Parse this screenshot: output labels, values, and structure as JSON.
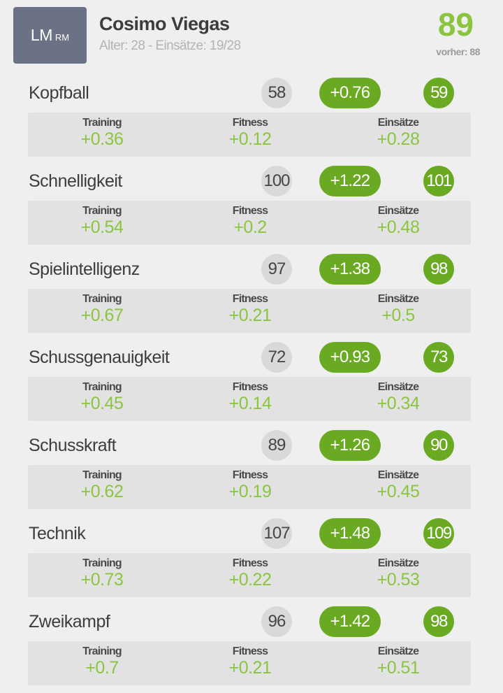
{
  "player": {
    "position_main": "LM",
    "position_secondary": "RM",
    "name": "Cosimo Viegas",
    "meta": "Alter: 28 - Einsätze: 19/28",
    "overall": "89",
    "previous": "vorher: 88"
  },
  "labels": {
    "training": "Training",
    "fitness": "Fitness",
    "einsaetze": "Einsätze"
  },
  "colors": {
    "accent_green": "#8bc53f",
    "pill_green": "#6aaa23",
    "badge_bg": "#6b7285"
  },
  "stats": [
    {
      "name": "Kopfball",
      "old": "58",
      "delta": "+0.76",
      "new": "59",
      "training": "+0.36",
      "fitness": "+0.12",
      "einsaetze": "+0.28"
    },
    {
      "name": "Schnelligkeit",
      "old": "100",
      "delta": "+1.22",
      "new": "101",
      "training": "+0.54",
      "fitness": "+0.2",
      "einsaetze": "+0.48"
    },
    {
      "name": "Spielintelligenz",
      "old": "97",
      "delta": "+1.38",
      "new": "98",
      "training": "+0.67",
      "fitness": "+0.21",
      "einsaetze": "+0.5"
    },
    {
      "name": "Schussgenauigkeit",
      "old": "72",
      "delta": "+0.93",
      "new": "73",
      "training": "+0.45",
      "fitness": "+0.14",
      "einsaetze": "+0.34"
    },
    {
      "name": "Schusskraft",
      "old": "89",
      "delta": "+1.26",
      "new": "90",
      "training": "+0.62",
      "fitness": "+0.19",
      "einsaetze": "+0.45"
    },
    {
      "name": "Technik",
      "old": "107",
      "delta": "+1.48",
      "new": "109",
      "training": "+0.73",
      "fitness": "+0.22",
      "einsaetze": "+0.53"
    },
    {
      "name": "Zweikampf",
      "old": "96",
      "delta": "+1.42",
      "new": "98",
      "training": "+0.7",
      "fitness": "+0.21",
      "einsaetze": "+0.51"
    }
  ]
}
